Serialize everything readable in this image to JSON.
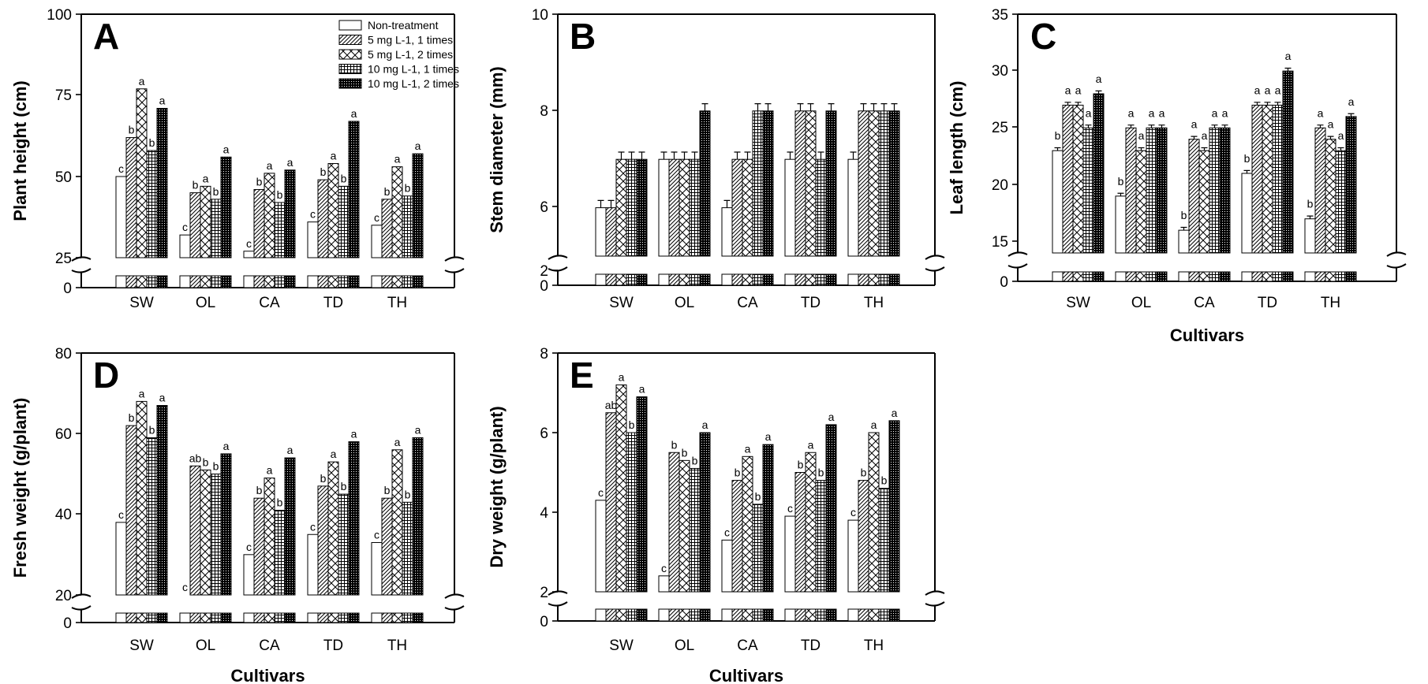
{
  "chart_data": [
    {
      "panel": "A",
      "type": "bar",
      "ylabel": "Plant height (cm)",
      "xlabel": "",
      "ylim": [
        0,
        100
      ],
      "yticks": [
        "0",
        "25",
        "50",
        "75",
        "100"
      ],
      "categories": [
        "SW",
        "OL",
        "CA",
        "TD",
        "TH"
      ],
      "legend": {
        "placement": "top-right"
      },
      "series": [
        {
          "name": "Non-treatment",
          "values": [
            50,
            32,
            27,
            36,
            35
          ],
          "labels": [
            "c",
            "c",
            "c",
            "c",
            "c"
          ]
        },
        {
          "name": "5 mg L-1, 1 times",
          "values": [
            62,
            45,
            46,
            49,
            43
          ],
          "labels": [
            "b",
            "b",
            "b",
            "b",
            "b"
          ]
        },
        {
          "name": "5 mg L-1, 2 times",
          "values": [
            77,
            47,
            51,
            54,
            53
          ],
          "labels": [
            "a",
            "a",
            "a",
            "a",
            "a"
          ]
        },
        {
          "name": "10 mg L-1, 1 times",
          "values": [
            58,
            43,
            42,
            47,
            44
          ],
          "labels": [
            "b",
            "b",
            "b",
            "b",
            "b"
          ]
        },
        {
          "name": "10 mg L-1, 2 times",
          "values": [
            71,
            56,
            52,
            67,
            57
          ],
          "labels": [
            "a",
            "a",
            "a",
            "a",
            "a"
          ]
        }
      ]
    },
    {
      "panel": "B",
      "type": "bar",
      "ylabel": "Stem diameter (mm)",
      "xlabel": "",
      "ylim": [
        0,
        10
      ],
      "yticks": [
        "0",
        "2",
        "6",
        "8",
        "10"
      ],
      "categories": [
        "SW",
        "OL",
        "CA",
        "TD",
        "TH"
      ],
      "series": [
        {
          "name": "Non-treatment",
          "values": [
            6,
            7,
            6,
            7,
            7
          ],
          "labels": []
        },
        {
          "name": "5 mg L-1, 1 times",
          "values": [
            6,
            7,
            7,
            8,
            8
          ],
          "labels": []
        },
        {
          "name": "5 mg L-1, 2 times",
          "values": [
            7,
            7,
            7,
            8,
            8
          ],
          "labels": []
        },
        {
          "name": "10 mg L-1, 1 times",
          "values": [
            7,
            7,
            8,
            7,
            8
          ],
          "labels": []
        },
        {
          "name": "10 mg L-1, 2 times",
          "values": [
            7,
            8,
            8,
            8,
            8
          ],
          "labels": []
        }
      ]
    },
    {
      "panel": "C",
      "type": "bar",
      "ylabel": "Leaf length (cm)",
      "xlabel": "Cultivars",
      "ylim": [
        0,
        35
      ],
      "yticks": [
        "0",
        "15",
        "20",
        "25",
        "30",
        "35"
      ],
      "categories": [
        "SW",
        "OL",
        "CA",
        "TD",
        "TH"
      ],
      "series": [
        {
          "name": "Non-treatment",
          "values": [
            23,
            19,
            16,
            21,
            17
          ],
          "labels": [
            "b",
            "b",
            "b",
            "b",
            "b"
          ]
        },
        {
          "name": "5 mg L-1, 1 times",
          "values": [
            27,
            25,
            24,
            27,
            25
          ],
          "labels": [
            "a",
            "a",
            "a",
            "a",
            "a"
          ]
        },
        {
          "name": "5 mg L-1, 2 times",
          "values": [
            27,
            23,
            23,
            27,
            24
          ],
          "labels": [
            "a",
            "a",
            "a",
            "a",
            "a"
          ]
        },
        {
          "name": "10 mg L-1, 1 times",
          "values": [
            25,
            25,
            25,
            27,
            23
          ],
          "labels": [
            "a",
            "a",
            "a",
            "a",
            "a"
          ]
        },
        {
          "name": "10 mg L-1, 2 times",
          "values": [
            28,
            25,
            25,
            30,
            26
          ],
          "labels": [
            "a",
            "a",
            "a",
            "a",
            "a"
          ]
        }
      ]
    },
    {
      "panel": "D",
      "type": "bar",
      "ylabel": "Fresh weight (g/plant)",
      "xlabel": "Cultivars",
      "ylim": [
        0,
        80
      ],
      "yticks": [
        "0",
        "20",
        "40",
        "60",
        "80"
      ],
      "categories": [
        "SW",
        "OL",
        "CA",
        "TD",
        "TH"
      ],
      "series": [
        {
          "name": "Non-treatment",
          "values": [
            38,
            20,
            30,
            35,
            33
          ],
          "labels": [
            "c",
            "c",
            "c",
            "c",
            "c"
          ]
        },
        {
          "name": "5 mg L-1, 1 times",
          "values": [
            62,
            52,
            44,
            47,
            44
          ],
          "labels": [
            "b",
            "ab",
            "b",
            "b",
            "b"
          ]
        },
        {
          "name": "5 mg L-1, 2 times",
          "values": [
            68,
            51,
            49,
            53,
            56
          ],
          "labels": [
            "a",
            "b",
            "a",
            "a",
            "a"
          ]
        },
        {
          "name": "10 mg L-1, 1 times",
          "values": [
            59,
            50,
            41,
            45,
            43
          ],
          "labels": [
            "b",
            "b",
            "b",
            "b",
            "b"
          ]
        },
        {
          "name": "10 mg L-1, 2 times",
          "values": [
            67,
            55,
            54,
            58,
            59
          ],
          "labels": [
            "a",
            "a",
            "a",
            "a",
            "a"
          ]
        }
      ]
    },
    {
      "panel": "E",
      "type": "bar",
      "ylabel": "Dry weight (g/plant)",
      "xlabel": "Cultivars",
      "ylim": [
        0,
        8
      ],
      "yticks": [
        "0",
        "2",
        "4",
        "6",
        "8"
      ],
      "categories": [
        "SW",
        "OL",
        "CA",
        "TD",
        "TH"
      ],
      "series": [
        {
          "name": "Non-treatment",
          "values": [
            4.3,
            2.4,
            3.3,
            3.9,
            3.8
          ],
          "labels": [
            "c",
            "c",
            "c",
            "c",
            "c"
          ]
        },
        {
          "name": "5 mg L-1, 1 times",
          "values": [
            6.5,
            5.5,
            4.8,
            5.0,
            4.8
          ],
          "labels": [
            "ab",
            "b",
            "b",
            "b",
            "b"
          ]
        },
        {
          "name": "5 mg L-1, 2 times",
          "values": [
            7.2,
            5.3,
            5.4,
            5.5,
            6.0
          ],
          "labels": [
            "a",
            "b",
            "a",
            "a",
            "a"
          ]
        },
        {
          "name": "10 mg L-1, 1 times",
          "values": [
            6.0,
            5.1,
            4.2,
            4.8,
            4.6
          ],
          "labels": [
            "b",
            "b",
            "b",
            "b",
            "b"
          ]
        },
        {
          "name": "10 mg L-1, 2 times",
          "values": [
            6.9,
            6.0,
            5.7,
            6.2,
            6.3
          ],
          "labels": [
            "a",
            "a",
            "a",
            "a",
            "a"
          ]
        }
      ]
    }
  ]
}
